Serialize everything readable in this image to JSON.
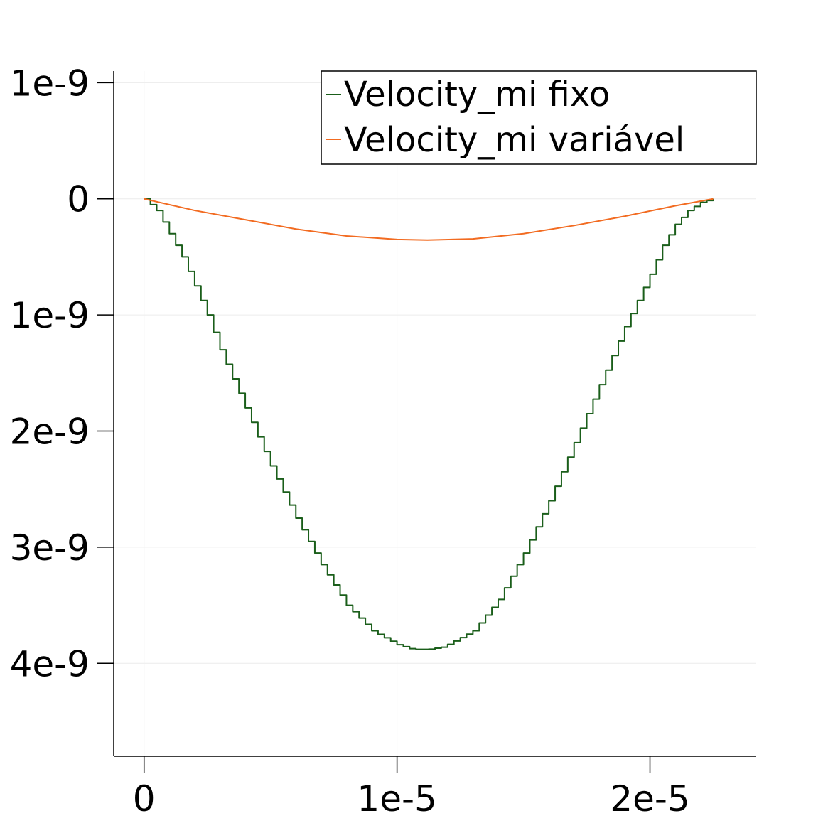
{
  "chart_data": {
    "type": "line",
    "title": "",
    "xlabel": "",
    "ylabel": "",
    "xlim": [
      -1.2e-06,
      2.42e-05
    ],
    "ylim": [
      -4.8e-09,
      1.1e-09
    ],
    "grid": true,
    "legend_position": "top-right",
    "x_ticks": [
      {
        "value": 0,
        "label": "0"
      },
      {
        "value": 1e-05,
        "label": "1e-5"
      },
      {
        "value": 2e-05,
        "label": "2e-5"
      }
    ],
    "y_ticks": [
      {
        "value": 1e-09,
        "label": "1e-9"
      },
      {
        "value": 0,
        "label": "0"
      },
      {
        "value": -1e-09,
        "label": "1e-9"
      },
      {
        "value": -2e-09,
        "label": "2e-9"
      },
      {
        "value": -3e-09,
        "label": "3e-9"
      },
      {
        "value": -4e-09,
        "label": "4e-9"
      }
    ],
    "series": [
      {
        "name": "Velocity_mi fixo",
        "color": "#1a5e1a",
        "step": true,
        "x": [
          0,
          5e-07,
          1e-06,
          1.5e-06,
          2e-06,
          2.5e-06,
          3e-06,
          4e-06,
          5e-06,
          6e-06,
          7e-06,
          8e-06,
          9e-06,
          1e-05,
          1.06e-05,
          1.12e-05,
          1.18e-05,
          1.3e-05,
          1.4e-05,
          1.5e-05,
          1.6e-05,
          1.7e-05,
          1.8e-05,
          1.9e-05,
          2e-05,
          2.05e-05,
          2.1e-05,
          2.15e-05,
          2.2e-05,
          2.25e-05
        ],
        "y": [
          0,
          -1e-10,
          -3e-10,
          -5e-10,
          -7.5e-10,
          -1e-09,
          -1.3e-09,
          -1.8e-09,
          -2.3e-09,
          -2.75e-09,
          -3.15e-09,
          -3.5e-09,
          -3.72e-09,
          -3.84e-09,
          -3.88e-09,
          -3.88e-09,
          -3.86e-09,
          -3.72e-09,
          -3.45e-09,
          -3.05e-09,
          -2.6e-09,
          -2.1e-09,
          -1.6e-09,
          -1.1e-09,
          -6.5e-10,
          -4e-10,
          -2.2e-10,
          -1e-10,
          -3e-11,
          0
        ]
      },
      {
        "name": "Velocity_mi variável",
        "color": "#f26b21",
        "step": false,
        "x": [
          0,
          2e-06,
          4e-06,
          6e-06,
          8e-06,
          1e-05,
          1.12e-05,
          1.3e-05,
          1.5e-05,
          1.7e-05,
          1.9e-05,
          2.1e-05,
          2.25e-05
        ],
        "y": [
          0,
          -1e-10,
          -1.8e-10,
          -2.6e-10,
          -3.2e-10,
          -3.5e-10,
          -3.55e-10,
          -3.45e-10,
          -3e-10,
          -2.3e-10,
          -1.5e-10,
          -6e-11,
          0
        ]
      }
    ]
  }
}
